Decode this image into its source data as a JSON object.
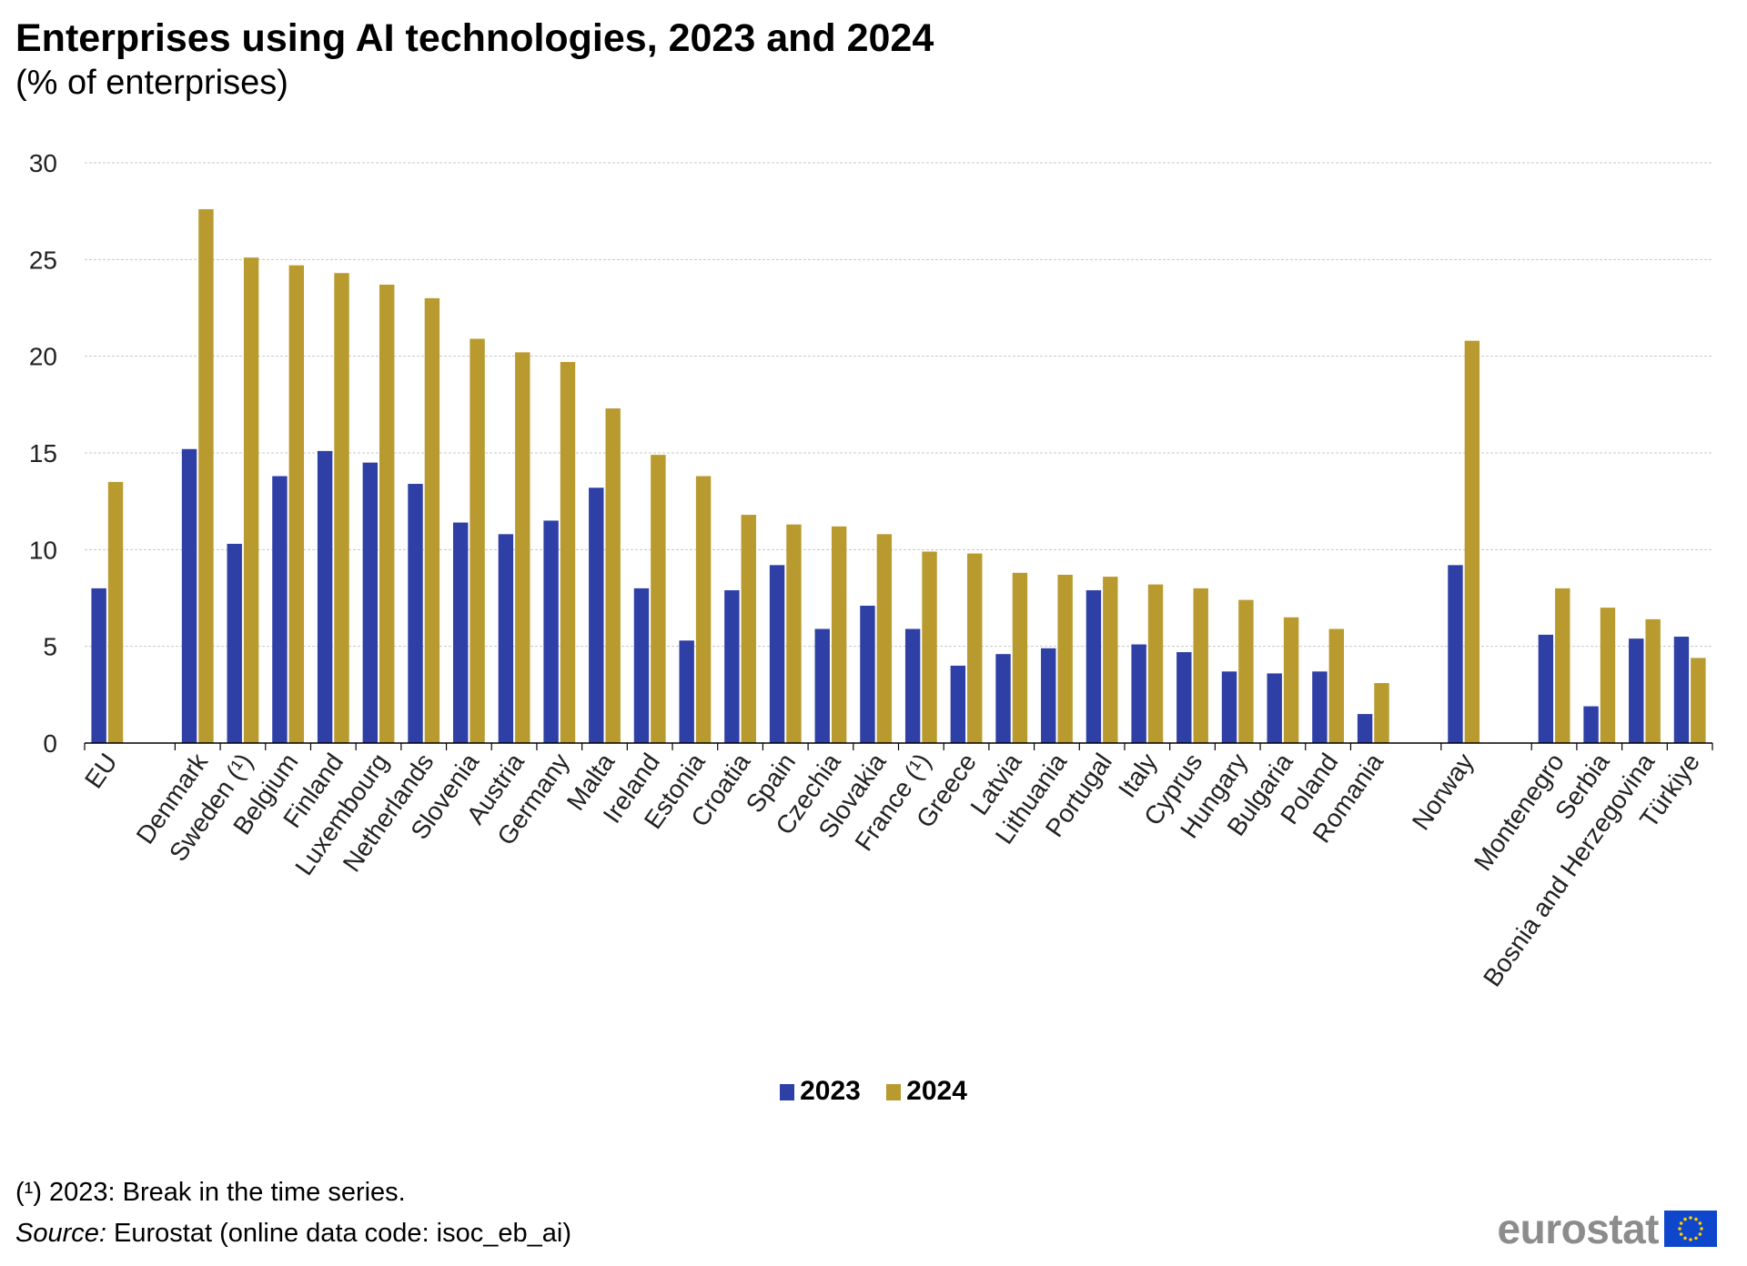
{
  "chart_data": {
    "type": "bar",
    "title": "Enterprises using AI technologies, 2023 and 2024",
    "subtitle": "(% of enterprises)",
    "ylim": [
      0,
      30
    ],
    "yticks": [
      0,
      5,
      10,
      15,
      20,
      25,
      30
    ],
    "grid": true,
    "legend_position": "bottom-center",
    "categories": [
      "EU",
      "Denmark",
      "Sweden (¹)",
      "Belgium",
      "Finland",
      "Luxembourg",
      "Netherlands",
      "Slovenia",
      "Austria",
      "Germany",
      "Malta",
      "Ireland",
      "Estonia",
      "Croatia",
      "Spain",
      "Czechia",
      "Slovakia",
      "France (¹)",
      "Greece",
      "Latvia",
      "Lithuania",
      "Portugal",
      "Italy",
      "Cyprus",
      "Hungary",
      "Bulgaria",
      "Poland",
      "Romania",
      "Norway",
      "Montenegro",
      "Serbia",
      "Bosnia and Herzegovina",
      "Türkiye"
    ],
    "groups_after": [
      0,
      27,
      28
    ],
    "series": [
      {
        "name": "2023",
        "color": "#2e3fa6",
        "values": [
          8.0,
          15.2,
          10.3,
          13.8,
          15.1,
          14.5,
          13.4,
          11.4,
          10.8,
          11.5,
          13.2,
          8.0,
          5.3,
          7.9,
          9.2,
          5.9,
          7.1,
          5.9,
          4.0,
          4.6,
          4.9,
          7.9,
          5.1,
          4.7,
          3.7,
          3.6,
          3.7,
          1.5,
          9.2,
          5.6,
          1.9,
          5.4,
          5.5
        ]
      },
      {
        "name": "2024",
        "color": "#b89a2e",
        "values": [
          13.5,
          27.6,
          25.1,
          24.7,
          24.3,
          23.7,
          23.0,
          20.9,
          20.2,
          19.7,
          17.3,
          14.9,
          13.8,
          11.8,
          11.3,
          11.2,
          10.8,
          9.9,
          9.8,
          8.8,
          8.7,
          8.6,
          8.2,
          8.0,
          7.4,
          6.5,
          5.9,
          3.1,
          20.8,
          8.0,
          7.0,
          6.4,
          4.4
        ]
      }
    ]
  },
  "footnote": "(¹) 2023: Break in the time series.",
  "source_label": "Source:",
  "source_text": " Eurostat (online data code: isoc_eb_ai)",
  "logo": {
    "text": "eurostat",
    "flag_color": "#0e47cb",
    "star_color": "#ffcc00"
  }
}
